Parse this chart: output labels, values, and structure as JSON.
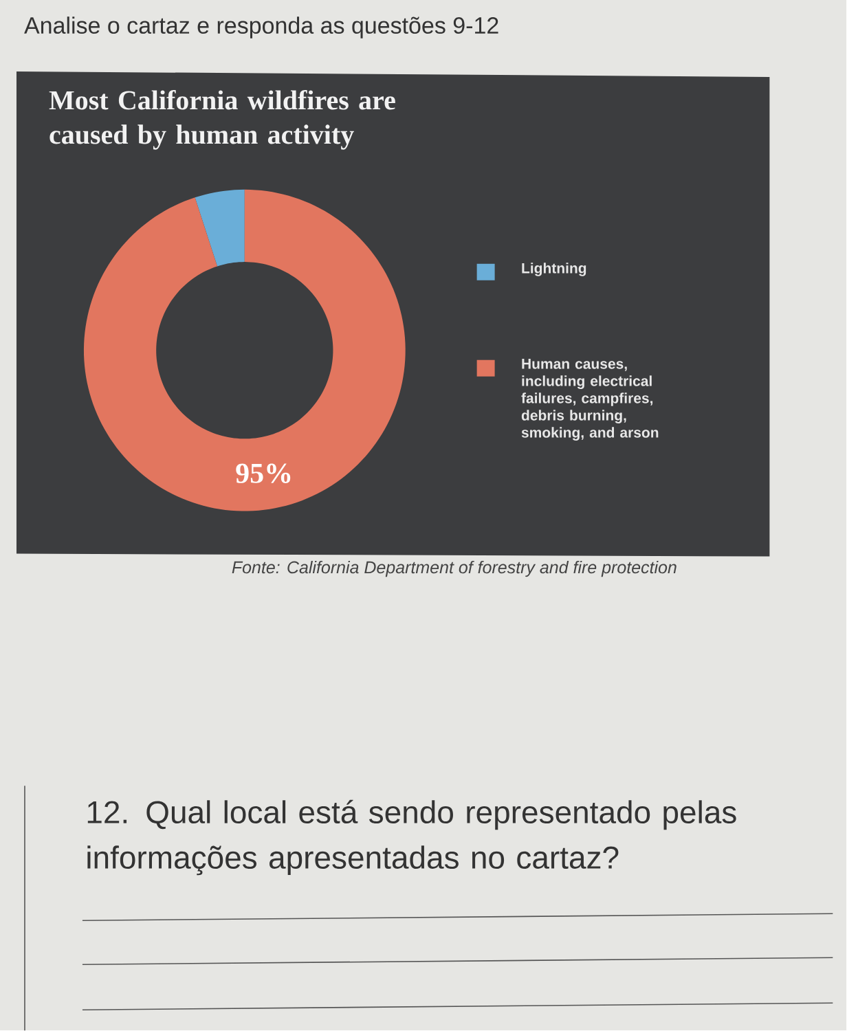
{
  "chart_data": {
    "type": "donut",
    "title": "Most California wildfires are caused by human activity",
    "categories": [
      "Lightning",
      "Human causes, including electrical failures, campfires, debris burning, smoking, and arson"
    ],
    "values": [
      5,
      95
    ],
    "colors": [
      "#6aaed8",
      "#e2765f"
    ],
    "value_labels": [
      null,
      "95%"
    ],
    "legend": "right",
    "annotations": [
      "Analise o cartaz e responda as questões 9-12",
      "Fonte: California Department of forestry and fire protection",
      "12. Qual local está sendo representado pelas informações apresentadas no cartaz?"
    ]
  }
}
